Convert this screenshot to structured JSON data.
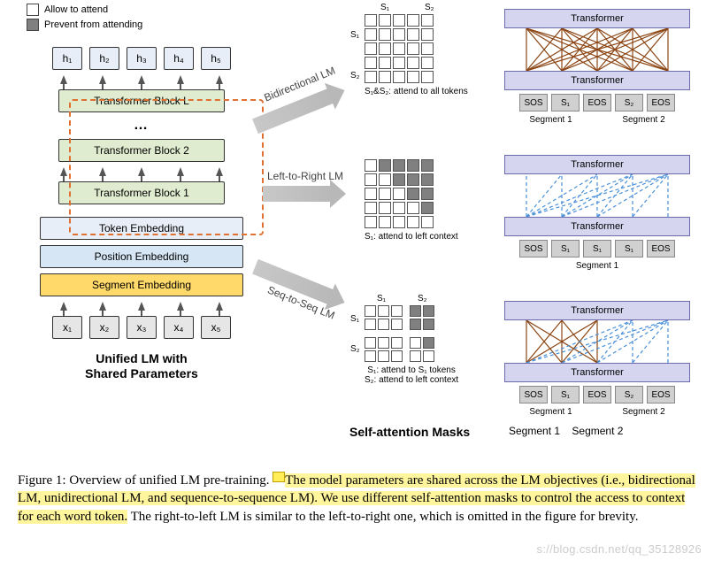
{
  "legend": {
    "allow": "Allow to attend",
    "prevent": "Prevent from attending"
  },
  "h_labels": [
    "h₁",
    "h₂",
    "h₃",
    "h₄",
    "h₅"
  ],
  "x_labels": [
    "x₁",
    "x₂",
    "x₃",
    "x₄",
    "x₅"
  ],
  "tf_blocks": {
    "L": "Transformer Block L",
    "dots": "…",
    "b2": "Transformer Block 2",
    "b1": "Transformer Block 1"
  },
  "embeddings": {
    "token": "Token Embedding",
    "position": "Position Embedding",
    "segment": "Segment Embedding"
  },
  "stack_title": {
    "l1": "Unified LM with",
    "l2": "Shared Parameters"
  },
  "arrows": {
    "bi": "Bidirectional LM",
    "l2r": "Left-to-Right LM",
    "s2s": "Seq-to-Seq LM"
  },
  "masks": {
    "bi": {
      "s1": "S₁",
      "s2": "S₂",
      "caption": "S₁&S₂: attend to all tokens",
      "grid": {
        "rows": 5,
        "cols": 5,
        "dark": []
      }
    },
    "l2r": {
      "caption": "S₁: attend to left context",
      "grid": {
        "rows": 5,
        "cols": 5,
        "dark": [
          [
            0,
            1
          ],
          [
            0,
            2
          ],
          [
            0,
            3
          ],
          [
            0,
            4
          ],
          [
            1,
            2
          ],
          [
            1,
            3
          ],
          [
            1,
            4
          ],
          [
            2,
            3
          ],
          [
            2,
            4
          ],
          [
            3,
            4
          ]
        ]
      }
    },
    "s2s": {
      "s1": "S₁",
      "s2": "S₂",
      "caption1": "S₁: attend to S₁ tokens",
      "caption2": "S₂: attend to left context",
      "cols": [
        0,
        1,
        2,
        "gap",
        3,
        4
      ],
      "rows": [
        0,
        1,
        "gap",
        2,
        3
      ],
      "dark": [
        [
          0,
          3
        ],
        [
          0,
          4
        ],
        [
          1,
          3
        ],
        [
          1,
          4
        ],
        [
          2,
          4
        ]
      ]
    }
  },
  "tf_diagrams": {
    "transformer_label": "Transformer",
    "bi": {
      "tokens": [
        "SOS",
        "S₁",
        "EOS",
        "S₂",
        "EOS"
      ],
      "seg1": "Segment 1",
      "seg2": "Segment 2",
      "line_color": "#8b4513",
      "line_style": "solid",
      "pattern": "full"
    },
    "l2r": {
      "tokens": [
        "SOS",
        "S₁",
        "S₁",
        "S₁",
        "EOS"
      ],
      "seg1": "Segment 1",
      "line_color": "#4a90d9",
      "line_style": "dashed",
      "pattern": "l2r"
    },
    "s2s": {
      "tokens": [
        "SOS",
        "S₁",
        "EOS",
        "S₂",
        "EOS"
      ],
      "seg1": "Segment 1",
      "seg2": "Segment 2",
      "left_color": "#8b4513",
      "right_color": "#4a90d9",
      "pattern": "s2s"
    }
  },
  "section_title": "Self-attention Masks",
  "right_labels": {
    "seg1": "Segment 1",
    "seg2": "Segment 2"
  },
  "caption": {
    "prefix": "Figure 1: Overview of unified LM pre-training. ",
    "hl": "The model parameters are shared across the LM objectives (i.e., bidirectional LM, unidirectional LM, and sequence-to-sequence LM). We use different self-attention masks to control the access to context for each word token.",
    "suffix": " The right-to-left LM is similar to the left-to-right one, which is omitted in the figure for brevity."
  },
  "watermark": "s://blog.csdn.net/qq_35128926",
  "colors": {
    "tf_green": "#e0ecd0",
    "emb_blue": "#e8eef7",
    "pos_blue": "#d6e6f5",
    "seg_yellow": "#ffd96a",
    "tf_purple": "#d5d5f0",
    "token_gray": "#d0d0d0",
    "dashed_orange": "#e07030",
    "arrow_gray": "#b8b8b8",
    "mask_dark": "#808080",
    "highlight": "#fff59d"
  }
}
